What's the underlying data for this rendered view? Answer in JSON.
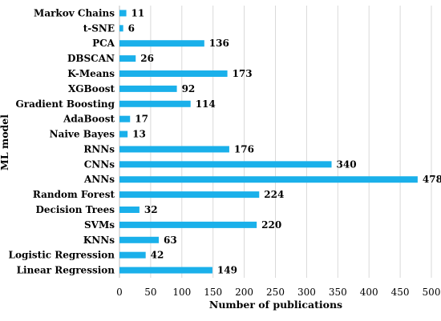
{
  "chart_data": {
    "type": "bar",
    "orientation": "horizontal",
    "categories": [
      "Markov Chains",
      "t-SNE",
      "PCA",
      "DBSCAN",
      "K-Means",
      "XGBoost",
      "Gradient Boosting",
      "AdaBoost",
      "Naive Bayes",
      "RNNs",
      "CNNs",
      "ANNs",
      "Random Forest",
      "Decision Trees",
      "SVMs",
      "KNNs",
      "Logistic Regression",
      "Linear Regression"
    ],
    "values": [
      11,
      6,
      136,
      26,
      173,
      92,
      114,
      17,
      13,
      176,
      340,
      478,
      224,
      32,
      220,
      63,
      42,
      149
    ],
    "xlabel": "Number of publications",
    "ylabel": "ML model",
    "xlim": [
      0,
      500
    ],
    "xticks": [
      0,
      50,
      100,
      150,
      200,
      250,
      300,
      350,
      400,
      450,
      500
    ],
    "grid": "vertical",
    "bar_color": "#1ab0ea",
    "data_labels": true
  }
}
